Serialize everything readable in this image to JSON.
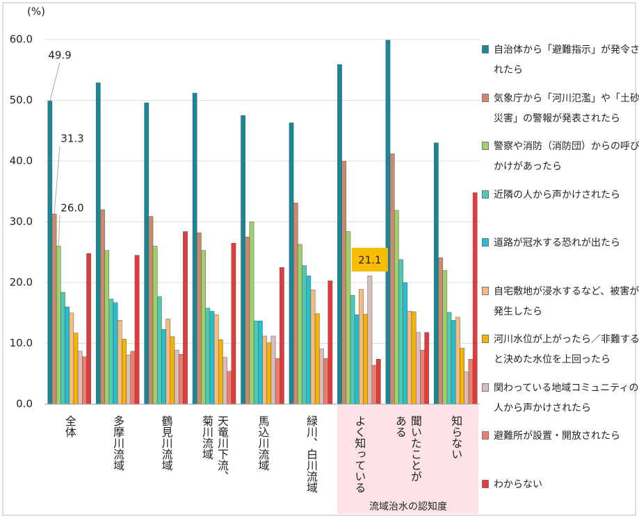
{
  "chart_data": {
    "type": "bar",
    "y_label": "(%)",
    "group_label": "流域治水の認知度",
    "categories": [
      "全体",
      "多摩川流域",
      "鶴見川流域",
      "天竜川下流、\n菊川流域",
      "馬込川流域",
      "緑川、白川流域",
      "よく知っている",
      "聞いたことが\nある",
      "知らない"
    ],
    "ylim": [
      0,
      60
    ],
    "yticks": [
      {
        "value": 0,
        "label": "0.0"
      },
      {
        "value": 10,
        "label": "10.0"
      },
      {
        "value": 20,
        "label": "20.0"
      },
      {
        "value": 30,
        "label": "30.0"
      },
      {
        "value": 40,
        "label": "40.0"
      },
      {
        "value": 50,
        "label": "50.0"
      },
      {
        "value": 60,
        "label": "60.0"
      }
    ],
    "grid": true,
    "series": [
      {
        "name": "自治体から「避難指示」が発令されたら",
        "color": "#17889a",
        "values": [
          49.9,
          52.9,
          49.6,
          51.2,
          47.5,
          46.3,
          55.9,
          59.9,
          43.0
        ],
        "value_labels": [
          "49.9",
          null,
          null,
          null,
          null,
          null,
          null,
          null,
          null
        ]
      },
      {
        "name": "気象庁から「河川氾濫」や「土砂災害」の警報が発表されたら",
        "color": "#c98a6e",
        "values": [
          31.3,
          32.0,
          30.9,
          28.2,
          27.5,
          33.1,
          40.0,
          41.2,
          24.1
        ],
        "value_labels": [
          "31.3",
          null,
          null,
          null,
          null,
          null,
          null,
          null,
          null
        ]
      },
      {
        "name": "警察や消防（消防団）からの呼びかけがあったら",
        "color": "#9fd06c",
        "values": [
          26.0,
          25.3,
          26.0,
          25.3,
          30.0,
          26.3,
          28.4,
          31.9,
          22.0
        ],
        "value_labels": [
          "26.0",
          null,
          null,
          null,
          null,
          null,
          null,
          null,
          null
        ]
      },
      {
        "name": "近隣の人から声かけされたら",
        "color": "#4ec9b2",
        "values": [
          18.4,
          17.3,
          17.7,
          15.8,
          13.7,
          22.8,
          17.9,
          23.8,
          15.1
        ]
      },
      {
        "name": "道路が冠水する恐れが出たら",
        "color": "#25bfd0",
        "values": [
          16.0,
          16.7,
          12.3,
          15.3,
          13.7,
          21.1,
          14.7,
          20.0,
          13.8
        ]
      },
      {
        "name": "自宅敷地が浸水するなど、被害が発生したら",
        "color": "#f6bb7e",
        "values": [
          15.0,
          13.8,
          14.0,
          14.7,
          11.2,
          18.8,
          18.9,
          15.3,
          14.3
        ]
      },
      {
        "name": "河川水位が上がったら／非難すると決めた水位を上回ったら",
        "color": "#f6b400",
        "values": [
          11.7,
          10.7,
          11.1,
          10.6,
          10.1,
          14.9,
          14.8,
          15.2,
          9.2
        ]
      },
      {
        "name": "関わっている地域コミュニティの人から声かけされたら",
        "color": "#dcbcbc",
        "values": [
          8.7,
          8.1,
          8.9,
          7.7,
          11.2,
          9.1,
          21.1,
          11.8,
          5.3
        ],
        "value_labels": [
          null,
          null,
          null,
          null,
          null,
          null,
          "21.1",
          null,
          null
        ]
      },
      {
        "name": "避難所が設置・開放されたら",
        "color": "#e9806e",
        "values": [
          7.8,
          8.7,
          8.2,
          5.4,
          7.5,
          7.5,
          6.4,
          8.9,
          7.4
        ]
      },
      {
        "name": "わからない",
        "color": "#e33b3b",
        "values": [
          24.8,
          24.5,
          28.4,
          26.5,
          22.5,
          20.3,
          7.4,
          11.8,
          34.8
        ]
      }
    ]
  }
}
